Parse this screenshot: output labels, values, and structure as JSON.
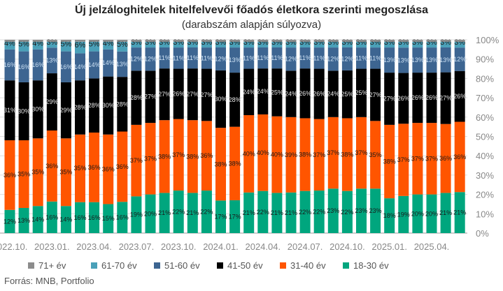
{
  "chart_data": {
    "type": "stacked-bar",
    "title": "Új jelzáloghitelek hitelfelvevői főadós életkora szerinti megoszlása",
    "subtitle": "(darabszám alapján súlyozva)",
    "xlabel": "",
    "ylabel": "",
    "ylim": [
      0,
      100
    ],
    "yticks": [
      "0%",
      "10%",
      "20%",
      "30%",
      "40%",
      "50%",
      "60%",
      "70%",
      "80%",
      "90%",
      "100%"
    ],
    "grid": true,
    "legend_position": "bottom",
    "categories": [
      "2022.10.",
      "2022.11.",
      "2022.12.",
      "2023.01.",
      "2023.02.",
      "2023.03.",
      "2023.04.",
      "2023.05.",
      "2023.06.",
      "2023.07.",
      "2023.08.",
      "2023.09.",
      "2023.10.",
      "2023.11.",
      "2023.12.",
      "2024.01.",
      "2024.02.",
      "2024.03.",
      "2024.04.",
      "2024.05.",
      "2024.06.",
      "2024.07.",
      "2024.08.",
      "2024.09.",
      "2024.10.",
      "2024.11.",
      "2024.12.",
      "2025.01.",
      "2025.02.",
      "2025.03.",
      "2025.04.",
      "2025.05.",
      "2025.06."
    ],
    "shown_tick_labels": [
      "2022.10.",
      "2023.01.",
      "2023.04.",
      "2023.07.",
      "2023.10.",
      "2024.01.",
      "2024.04.",
      "2024.07.",
      "2024.10.",
      "2025.01.",
      "2025.04."
    ],
    "series": [
      {
        "name": "18-30 év",
        "color": "#00a67e",
        "label_color": "#1a1a1a",
        "values": [
          12,
          13,
          14,
          16,
          14,
          16,
          16,
          15,
          16,
          19,
          20,
          21,
          22,
          21,
          22,
          17,
          17,
          21,
          22,
          21,
          21,
          22,
          22,
          23,
          22,
          23,
          23,
          18,
          19,
          20,
          20,
          21,
          21
        ]
      },
      {
        "name": "31-40 év",
        "color": "#ff5500",
        "label_color": "#1a1a1a",
        "values": [
          36,
          35,
          35,
          36,
          35,
          35,
          36,
          36,
          36,
          37,
          37,
          38,
          37,
          38,
          36,
          38,
          38,
          40,
          40,
          40,
          39,
          38,
          37,
          37,
          38,
          37,
          35,
          38,
          37,
          37,
          37,
          36,
          36
        ]
      },
      {
        "name": "41-50 év",
        "color": "#000000",
        "label_color": "#e8e8e8",
        "values": [
          31,
          30,
          30,
          29,
          29,
          28,
          28,
          30,
          28,
          28,
          27,
          27,
          26,
          27,
          27,
          30,
          28,
          24,
          24,
          25,
          24,
          26,
          26,
          24,
          25,
          25,
          27,
          27,
          26,
          26,
          26,
          27,
          26
        ]
      },
      {
        "name": "51-60 év",
        "color": "#3d6591",
        "label_color": "#cfe3f5",
        "values": [
          16,
          16,
          16,
          13,
          16,
          14,
          14,
          14,
          13,
          12,
          12,
          11,
          11,
          11,
          11,
          12,
          13,
          11,
          11,
          11,
          12,
          11,
          11,
          12,
          12,
          11,
          11,
          13,
          13,
          13,
          13,
          13,
          12
        ]
      },
      {
        "name": "61-70 év",
        "color": "#4aa0b8",
        "label_color": "#1a1a1a",
        "values": [
          4,
          5,
          4,
          3,
          5,
          6,
          5,
          4,
          5,
          3,
          3,
          3,
          3,
          3,
          3,
          3,
          3,
          3,
          3,
          3,
          3,
          3,
          3,
          3,
          3,
          3,
          3,
          3,
          3,
          3,
          3,
          3,
          3
        ]
      },
      {
        "name": "71+ év",
        "color": "#8c8c8c",
        "label_color": "#1a1a1a",
        "values": [
          1,
          1,
          1,
          1,
          1,
          1,
          1,
          1,
          1,
          1,
          1,
          1,
          1,
          1,
          1,
          1,
          1,
          1,
          1,
          1,
          1,
          1,
          1,
          1,
          1,
          1,
          1,
          1,
          1,
          1,
          1,
          1,
          1
        ],
        "labeled": false
      }
    ]
  },
  "source": "Forrás: MNB, Portfolio"
}
